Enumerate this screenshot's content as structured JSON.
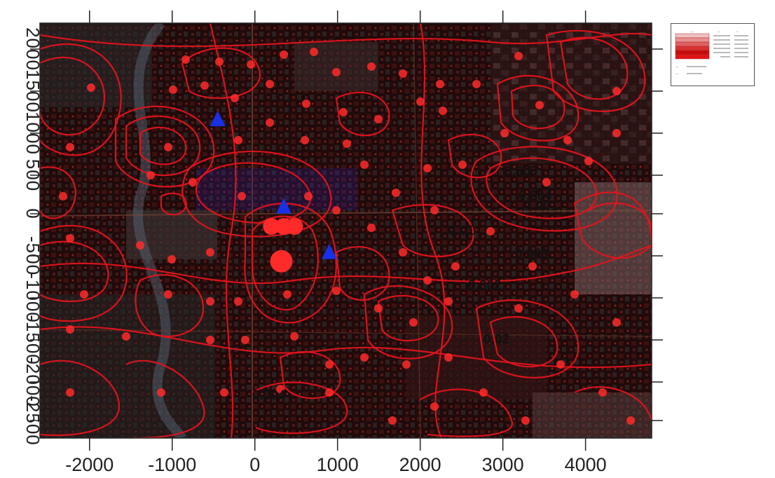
{
  "map": {
    "x_axis": {
      "ticks": [
        -2000,
        -1000,
        0,
        1000,
        2000,
        3000,
        4000
      ],
      "tick_labels": [
        "-2000",
        "-1000",
        "0",
        "1000",
        "2000",
        "3000",
        "4000"
      ],
      "range": [
        -2600,
        4800
      ]
    },
    "y_axis": {
      "tick_labels_visible": [
        "2000",
        "1500",
        "1000",
        "500",
        "0",
        "-500",
        "-1000",
        "-1500",
        "-2000",
        "-2500"
      ],
      "range": [
        -2750,
        2250
      ]
    },
    "contour_labels": [
      "0.003",
      "0.004",
      "0.001",
      "0.01",
      "0.003",
      "0.002",
      "0.02",
      "0.004"
    ],
    "colors": {
      "contour": "#e0141e",
      "receptor": "#ff2a2a",
      "source": "#1830e6",
      "basemap_dark": "#1a0808"
    }
  },
  "legend": {
    "header": [
      "...",
      "...",
      "..."
    ],
    "rows": 5,
    "footer": [
      "...",
      "..."
    ]
  },
  "chart_data": {
    "type": "heatmap",
    "title": "",
    "xlabel": "",
    "ylabel": "",
    "xlim": [
      -2600,
      4800
    ],
    "ylim": [
      -2750,
      2250
    ],
    "grid": false,
    "legend": "top-right",
    "contour_levels": [
      0.001,
      0.002,
      0.003,
      0.004,
      0.01,
      0.02
    ],
    "sources": [
      {
        "x": -450,
        "y": 1100
      },
      {
        "x": 350,
        "y": 50
      },
      {
        "x": 900,
        "y": -500
      }
    ],
    "receptors": [
      {
        "x": 200,
        "y": -200
      },
      {
        "x": 350,
        "y": -200
      },
      {
        "x": 480,
        "y": -200
      },
      {
        "x": 320,
        "y": -620
      }
    ]
  }
}
